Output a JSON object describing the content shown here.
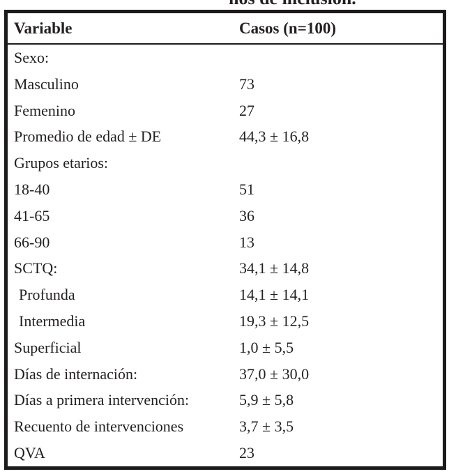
{
  "caption_fragment": "ños de inclusión.",
  "table": {
    "header": {
      "variable": "Variable",
      "casos": "Casos (n=100)"
    },
    "rows": [
      {
        "label": "Sexo:",
        "value": ""
      },
      {
        "label": "Masculino",
        "value": "73"
      },
      {
        "label": "Femenino",
        "value": "27"
      },
      {
        "label": "Promedio de edad ± DE",
        "value": "44,3 ± 16,8"
      },
      {
        "label": "Grupos etarios:",
        "value": ""
      },
      {
        "label": "18-40",
        "value": "51"
      },
      {
        "label": "41-65",
        "value": "36"
      },
      {
        "label": "66-90",
        "value": "13"
      },
      {
        "label": "SCTQ:",
        "value": "34,1 ± 14,8"
      },
      {
        "label": "Profunda",
        "value": "14,1 ± 14,1"
      },
      {
        "label": "Intermedia",
        "value": "19,3 ± 12,5"
      },
      {
        "label": "Superficial",
        "value": "1,0 ± 5,5"
      },
      {
        "label": "Días de internación:",
        "value": "37,0 ± 30,0"
      },
      {
        "label": "Días a primera intervención:",
        "value": "5,9 ± 5,8"
      },
      {
        "label": "Recuento de intervenciones",
        "value": "3,7 ± 3,5"
      },
      {
        "label": "QVA",
        "value": "23"
      }
    ],
    "colors": {
      "text": "#231f20",
      "border": "#1d1a1b",
      "background": "#ffffff"
    }
  }
}
